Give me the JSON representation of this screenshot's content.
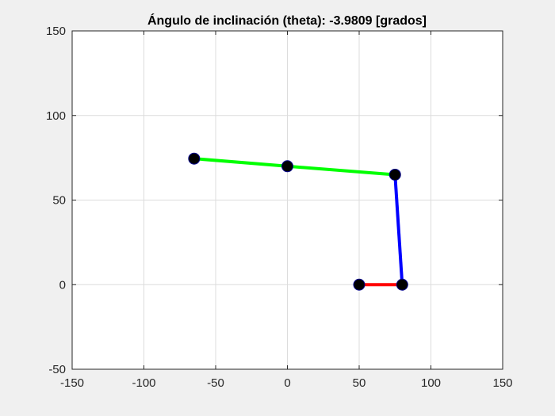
{
  "chart_data": {
    "type": "line",
    "title": "Ángulo de inclinación (theta):  -3.9809 [grados]",
    "xlabel": "",
    "ylabel": "",
    "xlim": [
      -150,
      150
    ],
    "ylim": [
      -50,
      150
    ],
    "xticks": [
      -150,
      -100,
      -50,
      0,
      50,
      100,
      150
    ],
    "yticks": [
      -50,
      0,
      50,
      100,
      150
    ],
    "grid": true,
    "background": "#ffffff",
    "figure_background": "#f0f0f0",
    "series": [
      {
        "color": "#ff0000",
        "x": [
          50,
          80
        ],
        "y": [
          0,
          0
        ]
      },
      {
        "color": "#0000ff",
        "x": [
          80,
          75
        ],
        "y": [
          0,
          65
        ]
      },
      {
        "color": "#00ff00",
        "x": [
          75,
          0,
          -65
        ],
        "y": [
          65,
          70,
          74.5
        ]
      }
    ],
    "markers": {
      "color": "#000000",
      "edge_color": "#00008b",
      "points": [
        {
          "x": 50,
          "y": 0
        },
        {
          "x": 80,
          "y": 0
        },
        {
          "x": 75,
          "y": 65
        },
        {
          "x": 0,
          "y": 70
        },
        {
          "x": -65,
          "y": 74.5
        }
      ]
    }
  }
}
